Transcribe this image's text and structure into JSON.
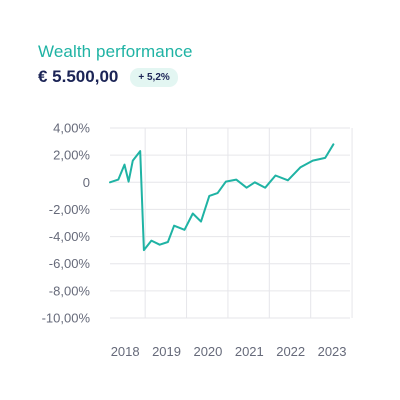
{
  "header": {
    "title": "Wealth performance",
    "value": "€ 5.500,00",
    "change_badge": "+ 5,2%"
  },
  "colors": {
    "title": "#1fb3a4",
    "line": "#1fb3a4",
    "value_text": "#1b2456",
    "badge_bg": "#e3f6f2",
    "grid": "#e6e6ea",
    "tick_text": "#666a7a"
  },
  "chart_data": {
    "type": "line",
    "title": "",
    "xlabel": "",
    "ylabel": "",
    "ylim": [
      -10,
      4
    ],
    "xlim": [
      2017.6,
      2023.4
    ],
    "y_ticks": [
      4,
      2,
      0,
      -2,
      -4,
      -6,
      -8,
      -10
    ],
    "y_tick_labels": [
      "4,00%",
      "2,00%",
      "0",
      "-2,00%",
      "-4,00%",
      "-6,00%",
      "-8,00%",
      "-10,00%"
    ],
    "x_ticks": [
      2018,
      2019,
      2020,
      2021,
      2022,
      2023
    ],
    "x_tick_labels": [
      "2018",
      "2019",
      "2020",
      "2021",
      "2022",
      "2023"
    ],
    "grid": true,
    "series": [
      {
        "x": [
          2017.6,
          2017.8,
          2017.95,
          2018.05,
          2018.15,
          2018.33,
          2018.42,
          2018.6,
          2018.8,
          2019.0,
          2019.15,
          2019.4,
          2019.6,
          2019.8,
          2020.0,
          2020.2,
          2020.4,
          2020.65,
          2020.9,
          2021.1,
          2021.35,
          2021.6,
          2021.9,
          2022.2,
          2022.5,
          2022.8,
          2023.0,
          2023.15,
          2023.4
        ],
        "y": [
          0.0,
          0.2,
          1.3,
          0.05,
          1.6,
          2.3,
          -5.0,
          -4.3,
          -4.6,
          -4.4,
          -3.2,
          -3.5,
          -2.3,
          -2.9,
          -1.0,
          -0.8,
          0.05,
          0.2,
          -0.4,
          0.0,
          -0.4,
          0.5,
          0.15,
          1.1,
          1.6,
          1.8,
          2.8,
          null,
          null
        ]
      }
    ]
  }
}
